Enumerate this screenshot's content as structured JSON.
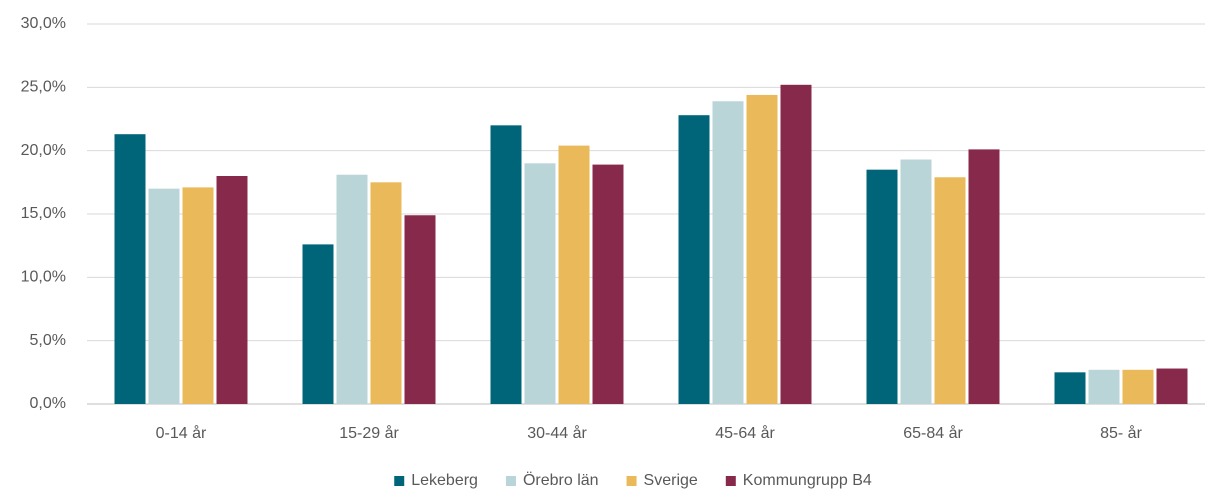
{
  "chart_data": {
    "type": "bar",
    "categories": [
      "0-14 år",
      "15-29 år",
      "30-44 år",
      "45-64 år",
      "65-84 år",
      "85- år"
    ],
    "series": [
      {
        "name": "Lekeberg",
        "color": "#006579",
        "values": [
          21.3,
          12.6,
          22.0,
          22.8,
          18.5,
          2.5
        ]
      },
      {
        "name": "Örebro län",
        "color": "#b9d5d7",
        "values": [
          17.0,
          18.1,
          19.0,
          23.9,
          19.3,
          2.7
        ]
      },
      {
        "name": "Sverige",
        "color": "#e9b95a",
        "values": [
          17.1,
          17.5,
          20.4,
          24.4,
          17.9,
          2.7
        ]
      },
      {
        "name": "Kommungrupp B4",
        "color": "#86294a",
        "values": [
          18.0,
          14.9,
          18.9,
          25.2,
          20.1,
          2.8
        ]
      }
    ],
    "ylim": [
      0,
      30
    ],
    "yticks": [
      {
        "value": 0,
        "label": "0,0%"
      },
      {
        "value": 5,
        "label": "5,0%"
      },
      {
        "value": 10,
        "label": "10,0%"
      },
      {
        "value": 15,
        "label": "15,0%"
      },
      {
        "value": 20,
        "label": "20,0%"
      },
      {
        "value": 25,
        "label": "25,0%"
      },
      {
        "value": 30,
        "label": "30,0%"
      }
    ],
    "grid": true,
    "legend": "bottom"
  }
}
